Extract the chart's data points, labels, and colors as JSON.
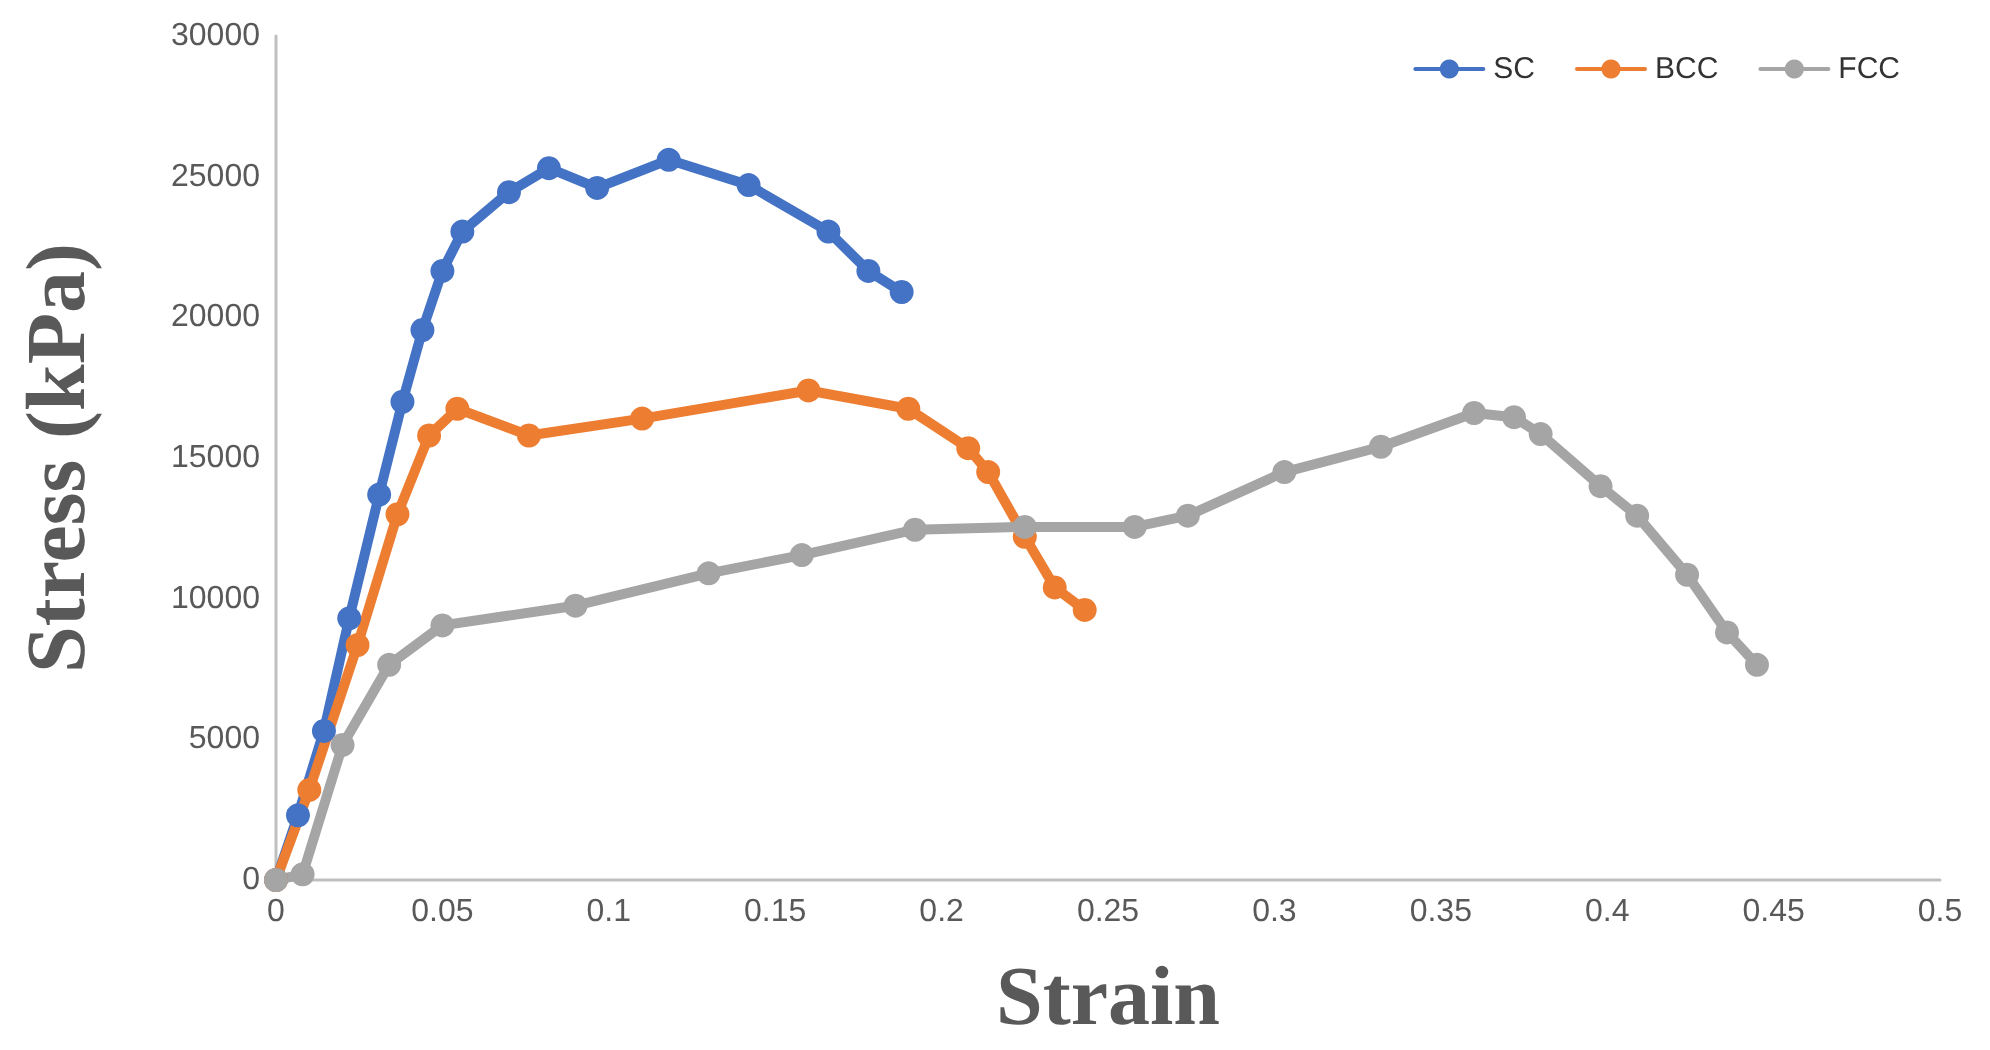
{
  "chart_data": {
    "type": "line",
    "xlabel": "Strain",
    "ylabel": "Stress (kPa)",
    "xlim": [
      0,
      0.5
    ],
    "xticks": [
      0,
      0.05,
      0.1,
      0.15,
      0.2,
      0.25,
      0.3,
      0.35,
      0.4,
      0.45,
      0.5
    ],
    "ylim": [
      0,
      30000
    ],
    "yticks": [
      0,
      5000,
      10000,
      15000,
      20000,
      25000,
      30000
    ],
    "grid": false,
    "legend": "top right",
    "marker": "circle",
    "line_style": "solid",
    "series": [
      {
        "name": "SC",
        "color": "#4472c4",
        "x": [
          0,
          0.0066,
          0.0144,
          0.022,
          0.031,
          0.038,
          0.044,
          0.05,
          0.056,
          0.07,
          0.082,
          0.0965,
          0.118,
          0.142,
          0.166,
          0.178,
          0.188
        ],
        "values": [
          0,
          2300,
          5300,
          9300,
          13700,
          17000,
          19550,
          21650,
          23050,
          24450,
          25300,
          24600,
          25600,
          24700,
          23050,
          21650,
          20900
        ]
      },
      {
        "name": "BCC",
        "color": "#ed7d31",
        "x": [
          0,
          0.01,
          0.0245,
          0.0365,
          0.046,
          0.0545,
          0.076,
          0.11,
          0.16,
          0.19,
          0.208,
          0.214,
          0.225,
          0.234,
          0.243
        ],
        "values": [
          0,
          3200,
          8350,
          13000,
          15800,
          16750,
          15800,
          16400,
          17400,
          16750,
          15350,
          14500,
          12200,
          10400,
          9600
        ]
      },
      {
        "name": "FCC",
        "color": "#a5a5a5",
        "x": [
          0,
          0.008,
          0.02,
          0.034,
          0.05,
          0.09,
          0.13,
          0.158,
          0.192,
          0.225,
          0.258,
          0.274,
          0.303,
          0.332,
          0.36,
          0.372,
          0.38,
          0.398,
          0.409,
          0.424,
          0.436,
          0.445
        ],
        "values": [
          0,
          200,
          4800,
          7650,
          9050,
          9750,
          10900,
          11550,
          12450,
          12550,
          12550,
          12950,
          14500,
          15400,
          16600,
          16450,
          15850,
          14000,
          12950,
          10850,
          8800,
          7650
        ]
      }
    ]
  }
}
